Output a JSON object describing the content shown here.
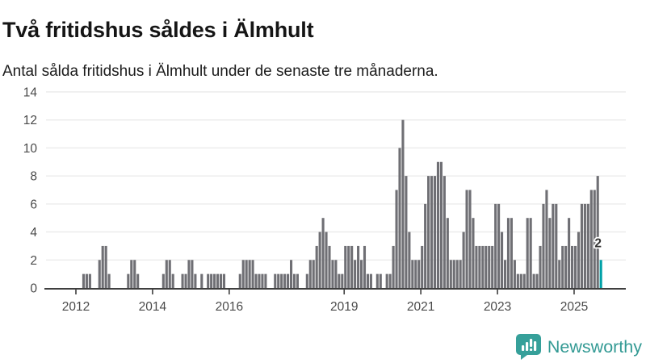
{
  "header": {
    "title": "Två fritidshus såldes i Älmhult",
    "subtitle": "Antal sålda fritidshus i Älmhult under de senaste tre månaderna."
  },
  "chart_data": {
    "type": "bar",
    "title": "Två fritidshus såldes i Älmhult",
    "subtitle": "Antal sålda fritidshus i Älmhult under de senaste tre månaderna.",
    "x_period": "monthly",
    "x_start": "2012-01",
    "series": [
      {
        "year": 2012,
        "values": [
          0,
          0,
          1,
          1,
          1,
          0,
          0,
          2,
          3,
          3,
          1,
          0
        ]
      },
      {
        "year": 2013,
        "values": [
          0,
          0,
          0,
          0,
          1,
          2,
          2,
          1,
          0,
          0,
          0,
          0
        ]
      },
      {
        "year": 2014,
        "values": [
          0,
          0,
          0,
          1,
          2,
          2,
          1,
          0,
          0,
          1,
          1,
          2
        ]
      },
      {
        "year": 2015,
        "values": [
          2,
          1,
          0,
          1,
          0,
          1,
          1,
          1,
          1,
          1,
          1,
          0
        ]
      },
      {
        "year": 2016,
        "values": [
          0,
          0,
          0,
          1,
          2,
          2,
          2,
          2,
          1,
          1,
          1,
          1
        ]
      },
      {
        "year": 2017,
        "values": [
          0,
          0,
          1,
          1,
          1,
          1,
          1,
          2,
          1,
          1,
          0,
          0
        ]
      },
      {
        "year": 2018,
        "values": [
          1,
          2,
          2,
          3,
          4,
          5,
          4,
          3,
          2,
          2,
          1,
          1
        ]
      },
      {
        "year": 2019,
        "values": [
          3,
          3,
          3,
          2,
          3,
          2,
          3,
          1,
          1,
          0,
          1,
          1
        ]
      },
      {
        "year": 2020,
        "values": [
          0,
          1,
          1,
          3,
          7,
          10,
          12,
          8,
          4,
          2,
          2,
          2
        ]
      },
      {
        "year": 2021,
        "values": [
          3,
          6,
          8,
          8,
          8,
          9,
          9,
          8,
          5,
          2,
          2,
          2
        ]
      },
      {
        "year": 2022,
        "values": [
          2,
          4,
          7,
          7,
          5,
          3,
          3,
          3,
          3,
          3,
          3,
          6
        ]
      },
      {
        "year": 2023,
        "values": [
          6,
          4,
          2,
          5,
          5,
          2,
          1,
          1,
          1,
          5,
          5,
          1
        ]
      },
      {
        "year": 2024,
        "values": [
          1,
          3,
          6,
          7,
          5,
          6,
          6,
          2,
          3,
          3,
          5,
          3
        ]
      },
      {
        "year": 2025,
        "values": [
          3,
          4,
          6,
          6,
          6,
          7,
          7,
          8,
          2
        ]
      }
    ],
    "highlight_last_bar": {
      "value": 2,
      "label": "2",
      "color": "#00a1a7"
    },
    "bar_color": "#6f6f74",
    "ylim": [
      0,
      14
    ],
    "yticks": [
      0,
      2,
      4,
      6,
      8,
      10,
      12,
      14
    ],
    "xtick_years": [
      "2012",
      "2014",
      "2016",
      "2019",
      "2021",
      "2023",
      "2025"
    ],
    "grid": "horizontal",
    "legend": "none",
    "xlabel": "",
    "ylabel": ""
  },
  "annotation": {
    "text": "2"
  },
  "footer": {
    "brand": "Newsworthy"
  },
  "colors": {
    "bar": "#6f6f74",
    "highlight": "#00a1a7",
    "gridline": "#eaeaea",
    "axis": "#3f3f3f",
    "tick_label": "#4a4a4a",
    "logo": "#339a94",
    "title": "#151515"
  }
}
